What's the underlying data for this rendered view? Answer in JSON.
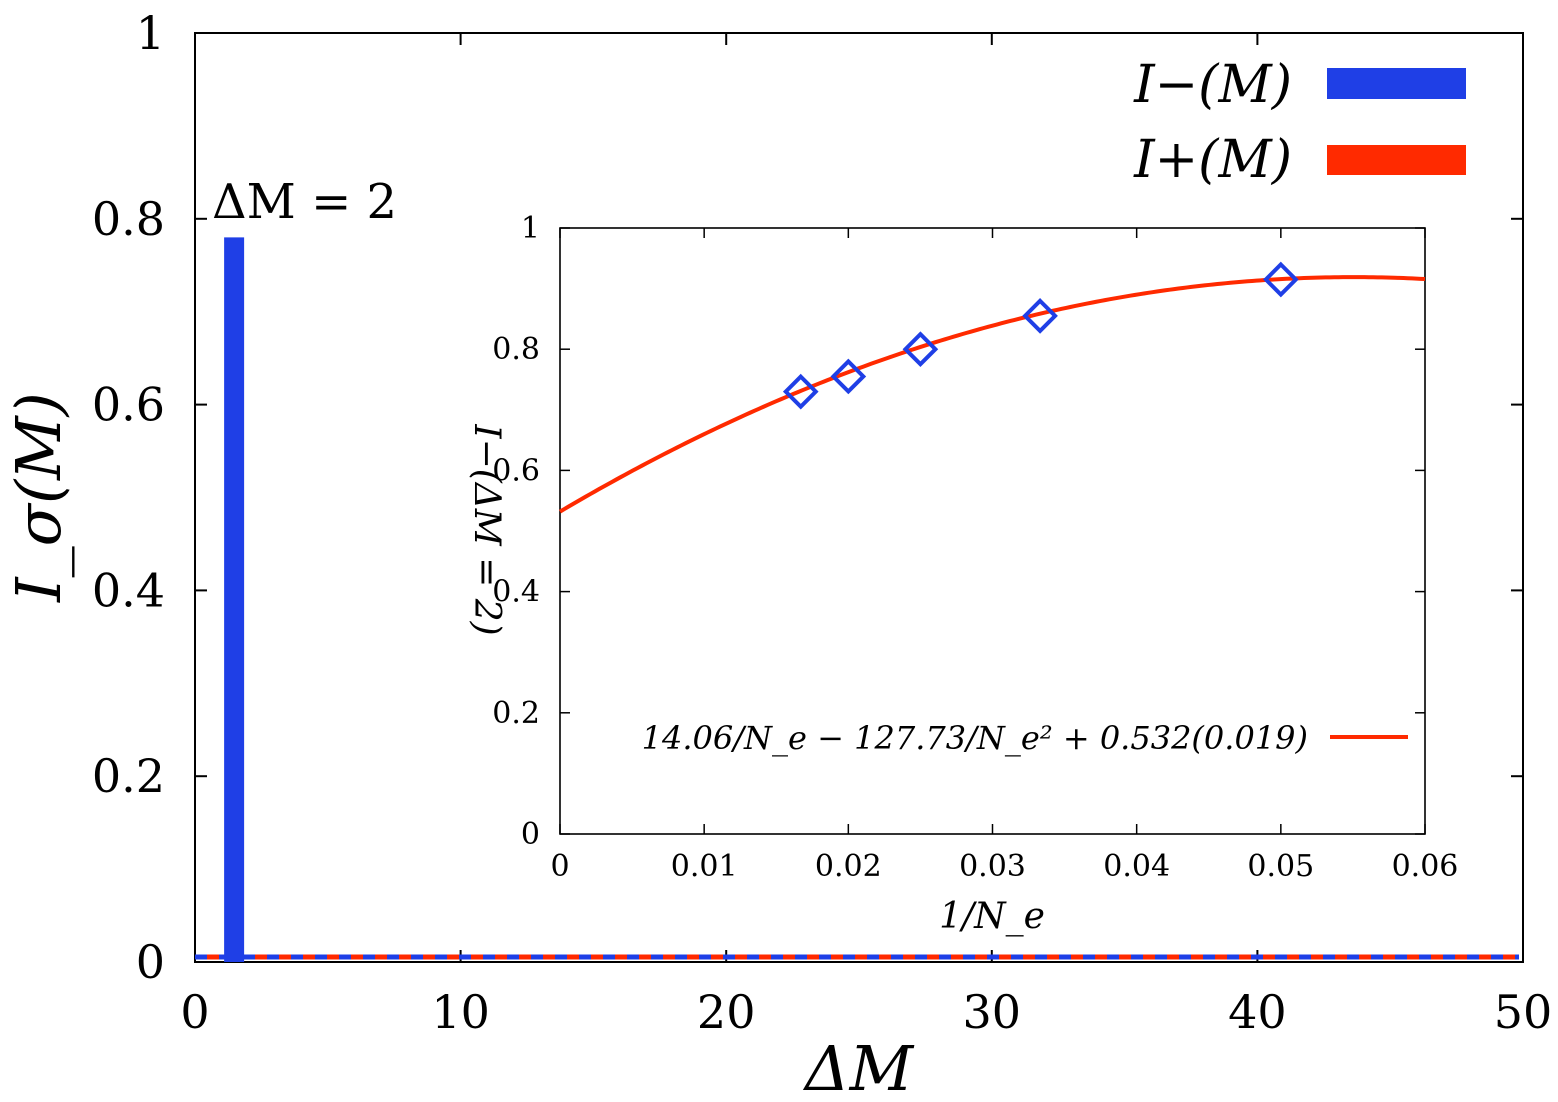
{
  "chart_data": [
    {
      "type": "bar",
      "xlabel": "ΔM",
      "ylabel": "I_σ(M)",
      "xlim": [
        0,
        50
      ],
      "ylim": [
        0,
        1
      ],
      "xticks": [
        "0",
        "10",
        "20",
        "30",
        "40",
        "50"
      ],
      "yticks": [
        "0",
        "0.2",
        "0.4",
        "0.6",
        "0.8",
        "1"
      ],
      "annotation": "ΔM = 2",
      "legend_position": "top-right",
      "series": [
        {
          "name": "I−(M)",
          "color": "#1f3fe6",
          "x": [
            2
          ],
          "values": [
            0.78
          ],
          "baseline": 0
        },
        {
          "name": "I+(M)",
          "color": "#ff2a00",
          "x": [
            2
          ],
          "values": [
            0
          ],
          "baseline": 0
        }
      ]
    },
    {
      "type": "scatter",
      "xlabel": "1/N_e",
      "ylabel": "I−(ΔM = 2)",
      "xlim": [
        0,
        0.06
      ],
      "ylim": [
        0,
        1
      ],
      "xticks": [
        "0",
        "0.01",
        "0.02",
        "0.03",
        "0.04",
        "0.05",
        "0.06"
      ],
      "yticks": [
        "0",
        "0.2",
        "0.4",
        "0.6",
        "0.8",
        "1"
      ],
      "points": {
        "marker": "diamond",
        "color": "#1f3fe6",
        "x": [
          0.0167,
          0.02,
          0.025,
          0.0333,
          0.05
        ],
        "y": [
          0.73,
          0.755,
          0.8,
          0.855,
          0.915
        ]
      },
      "fit": {
        "label": "14.06/N_e − 127.73/N_e² + 0.532(0.019)",
        "color": "#ff2a00",
        "coefficients": {
          "linear": 14.06,
          "quadratic": -127.73,
          "intercept": 0.532
        },
        "intercept_error": 0.019
      },
      "legend_position": "bottom-right"
    }
  ]
}
